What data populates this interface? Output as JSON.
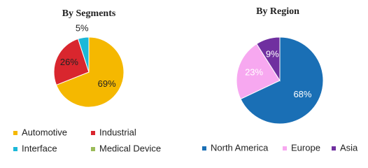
{
  "chart_data": [
    {
      "type": "pie",
      "title": "By Segments",
      "categories": [
        "Automotive",
        "Industrial",
        "Interface",
        "Medical Device"
      ],
      "values": [
        69,
        26,
        5,
        0
      ],
      "value_labels": [
        "69%",
        "26%",
        "5%",
        null
      ],
      "colors": [
        "#f5b800",
        "#d9262e",
        "#1cb8d8",
        "#9bbb59"
      ]
    },
    {
      "type": "pie",
      "title": "By Region",
      "categories": [
        "North America",
        "Europe",
        "Asia"
      ],
      "values": [
        68,
        23,
        9
      ],
      "value_labels": [
        "68%",
        "23%",
        "9%"
      ],
      "colors": [
        "#1a6fb5",
        "#f7a8f0",
        "#7030a0"
      ]
    }
  ]
}
